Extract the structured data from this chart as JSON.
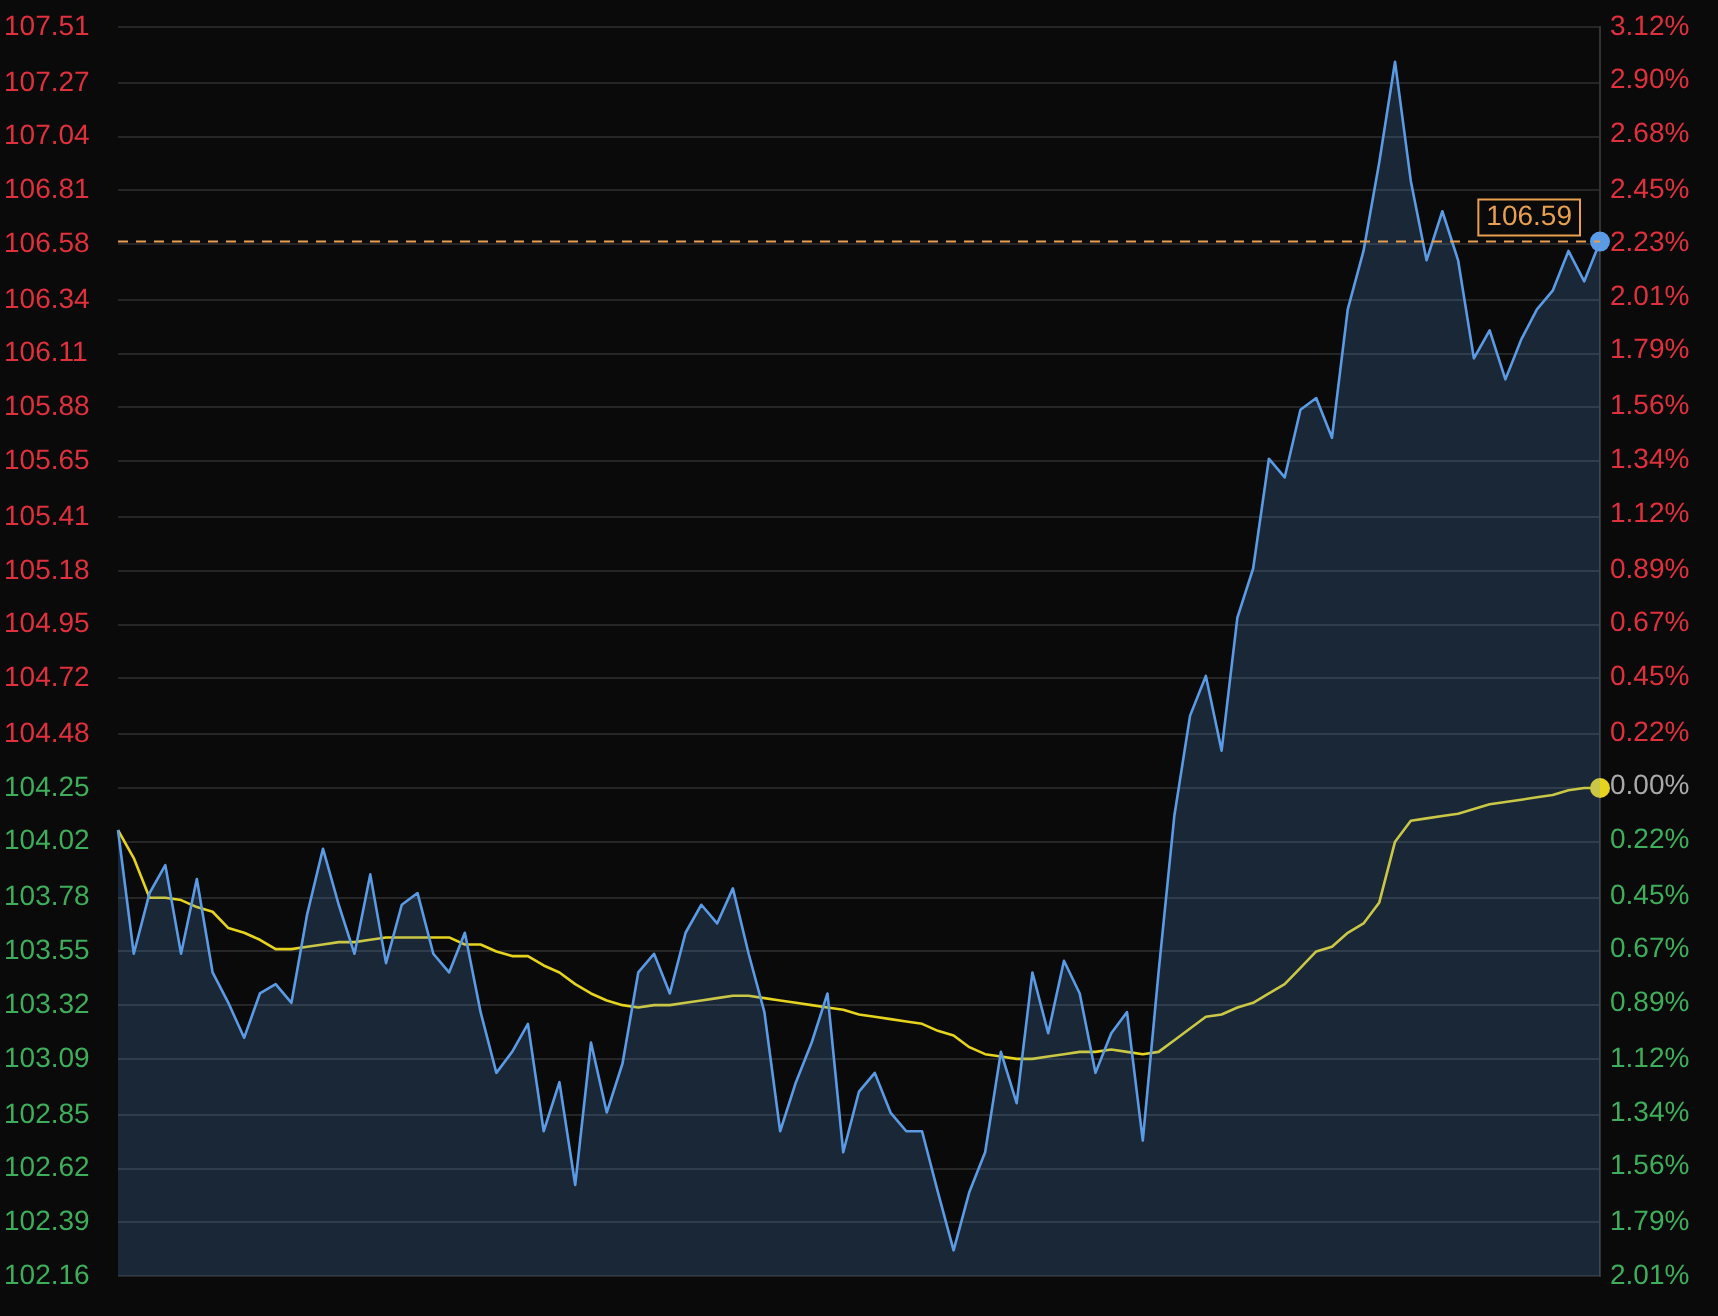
{
  "chart_data": {
    "type": "area",
    "categories": [
      null,
      null,
      null,
      null,
      null,
      null,
      null,
      null,
      null,
      null,
      null,
      null,
      null,
      null,
      null,
      null,
      null,
      null,
      null,
      null,
      null,
      null,
      null,
      null,
      null,
      null,
      null,
      null,
      null,
      null,
      null,
      null,
      null,
      null,
      null,
      null,
      null,
      null,
      null,
      null,
      null,
      null,
      null,
      null,
      null,
      null,
      null,
      null,
      null,
      null,
      null,
      null,
      null,
      null,
      null,
      null,
      null,
      null,
      null,
      null,
      null,
      null,
      null,
      null,
      null,
      null,
      null,
      null,
      null,
      null,
      null,
      null,
      null,
      null,
      null,
      null,
      null,
      null,
      null,
      null,
      null,
      null,
      null,
      null,
      null,
      null,
      null,
      null,
      null,
      null,
      null,
      null,
      null,
      null,
      null
    ],
    "series": [
      {
        "color": "#5b9be6",
        "values": [
          104.07,
          103.54,
          103.8,
          103.92,
          103.54,
          103.86,
          103.46,
          103.33,
          103.18,
          103.37,
          103.41,
          103.33,
          103.71,
          103.99,
          103.75,
          103.54,
          103.88,
          103.5,
          103.75,
          103.8,
          103.54,
          103.46,
          103.63,
          103.29,
          103.03,
          103.12,
          103.24,
          102.78,
          102.99,
          102.55,
          103.16,
          102.86,
          103.07,
          103.46,
          103.54,
          103.37,
          103.63,
          103.75,
          103.67,
          103.82,
          103.54,
          103.29,
          102.78,
          102.99,
          103.16,
          103.37,
          102.69,
          102.95,
          103.03,
          102.86,
          102.78,
          102.78,
          102.52,
          102.27,
          102.52,
          102.69,
          103.12,
          102.9,
          103.46,
          103.2,
          103.51,
          103.37,
          103.03,
          103.2,
          103.29,
          102.74,
          103.46,
          104.13,
          104.56,
          104.73,
          104.41,
          104.98,
          105.19,
          105.66,
          105.58,
          105.87,
          105.92,
          105.75,
          106.3,
          106.55,
          106.93,
          107.36,
          106.85,
          106.51,
          106.72,
          106.51,
          106.09,
          106.21,
          106.0,
          106.17,
          106.3,
          106.38,
          106.55,
          106.42,
          106.59
        ]
      },
      {
        "type": "line",
        "color": "#e6d31e",
        "values": [
          104.07,
          103.95,
          103.78,
          103.78,
          103.77,
          103.74,
          103.72,
          103.65,
          103.63,
          103.6,
          103.56,
          103.56,
          103.57,
          103.58,
          103.59,
          103.59,
          103.6,
          103.61,
          103.61,
          103.61,
          103.61,
          103.61,
          103.58,
          103.58,
          103.55,
          103.53,
          103.53,
          103.49,
          103.46,
          103.41,
          103.37,
          103.34,
          103.32,
          103.31,
          103.32,
          103.32,
          103.33,
          103.34,
          103.35,
          103.36,
          103.36,
          103.35,
          103.34,
          103.33,
          103.32,
          103.31,
          103.3,
          103.28,
          103.27,
          103.26,
          103.25,
          103.24,
          103.21,
          103.19,
          103.14,
          103.11,
          103.1,
          103.09,
          103.09,
          103.1,
          103.11,
          103.12,
          103.12,
          103.13,
          103.12,
          103.11,
          103.12,
          103.17,
          103.22,
          103.27,
          103.28,
          103.31,
          103.33,
          103.37,
          103.41,
          103.48,
          103.55,
          103.57,
          103.63,
          103.67,
          103.76,
          104.02,
          104.11,
          104.12,
          104.13,
          104.14,
          104.16,
          104.18,
          104.19,
          104.2,
          104.21,
          104.22,
          104.24,
          104.25,
          104.25
        ]
      }
    ],
    "ylim": [
      102.16,
      107.51
    ],
    "yticks": [
      107.51,
      107.27,
      107.04,
      106.81,
      106.58,
      106.34,
      106.11,
      105.88,
      105.65,
      105.41,
      105.18,
      104.95,
      104.72,
      104.48,
      104.25,
      104.02,
      103.78,
      103.55,
      103.32,
      103.09,
      102.85,
      102.62,
      102.39,
      102.16
    ],
    "y2lim": [
      -2.01,
      3.12
    ],
    "y2ticks": [
      {
        "value": 3.12,
        "label": "3.12%"
      },
      {
        "value": 2.9,
        "label": "2.90%"
      },
      {
        "value": 2.68,
        "label": "2.68%"
      },
      {
        "value": 2.45,
        "label": "2.45%"
      },
      {
        "value": 2.23,
        "label": "2.23%"
      },
      {
        "value": 2.01,
        "label": "2.01%"
      },
      {
        "value": 1.79,
        "label": "1.79%"
      },
      {
        "value": 1.56,
        "label": "1.56%"
      },
      {
        "value": 1.34,
        "label": "1.34%"
      },
      {
        "value": 1.12,
        "label": "1.12%"
      },
      {
        "value": 0.89,
        "label": "0.89%"
      },
      {
        "value": 0.67,
        "label": "0.67%"
      },
      {
        "value": 0.45,
        "label": "0.45%"
      },
      {
        "value": 0.22,
        "label": "0.22%"
      },
      {
        "value": 0,
        "label": "0.00%"
      },
      {
        "value": -0.22,
        "label": "0.22%"
      },
      {
        "value": -0.45,
        "label": "0.45%"
      },
      {
        "value": -0.67,
        "label": "0.67%"
      },
      {
        "value": -0.89,
        "label": "0.89%"
      },
      {
        "value": -1.12,
        "label": "1.12%"
      },
      {
        "value": -1.34,
        "label": "1.34%"
      },
      {
        "value": -1.56,
        "label": "1.56%"
      },
      {
        "value": -1.79,
        "label": "1.79%"
      },
      {
        "value": -2.01,
        "label": "2.01%"
      }
    ],
    "ref_lines": [
      {
        "axis": "y",
        "value": 106.59,
        "label": "106.59",
        "color": "#e8a050",
        "line_style": "dashed"
      }
    ],
    "grid": true,
    "tick_labels": "y"
  }
}
